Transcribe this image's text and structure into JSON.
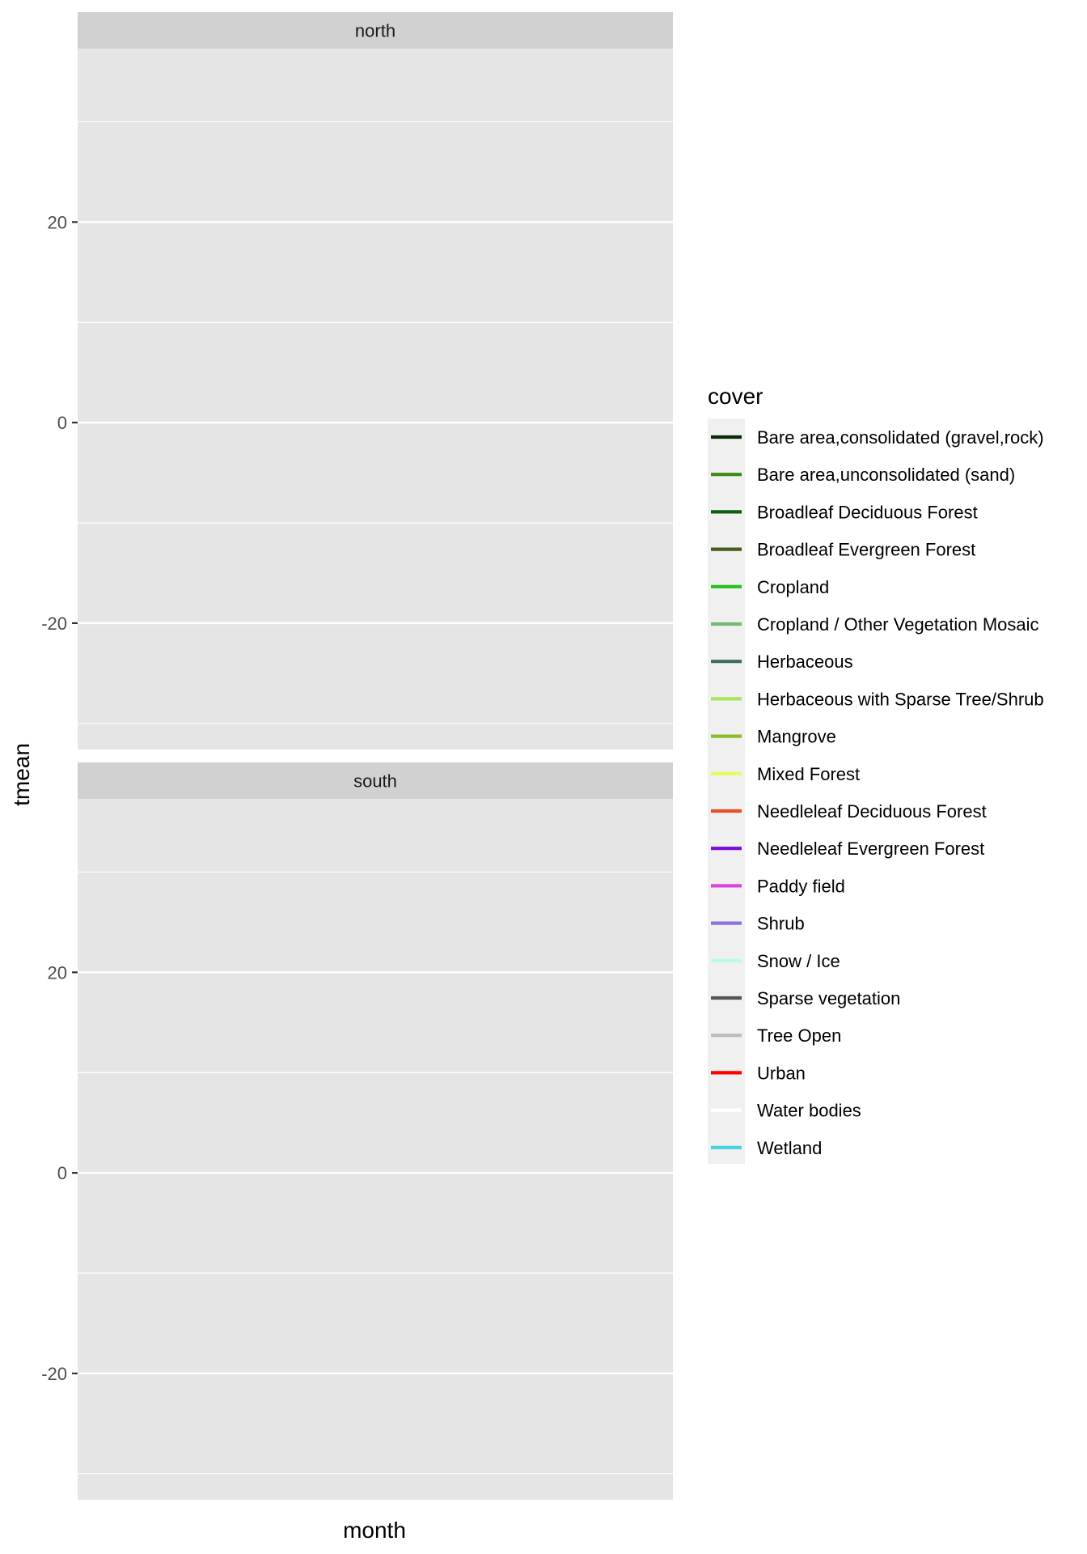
{
  "chart_data": {
    "type": "line",
    "facets": [
      {
        "label": "north",
        "series": []
      },
      {
        "label": "south",
        "series": []
      }
    ],
    "xlabel": "month",
    "ylabel": "tmean",
    "ylim": [
      -32.6,
      37.3
    ],
    "y_major_ticks": [
      -20,
      0,
      20
    ],
    "y_major_tick_labels": [
      "-20",
      "0",
      "20"
    ],
    "y_minor_ticks": [
      -30,
      -10,
      10,
      30
    ],
    "grid": true,
    "legend": {
      "title": "cover",
      "position": "right",
      "entries": [
        {
          "label": "Bare area,consolidated (gravel,rock)",
          "color": "#0a2a0a"
        },
        {
          "label": "Bare area,unconsolidated (sand)",
          "color": "#3d8a14"
        },
        {
          "label": "Broadleaf Deciduous Forest",
          "color": "#0b5e14"
        },
        {
          "label": "Broadleaf Evergreen Forest",
          "color": "#445c1e"
        },
        {
          "label": "Cropland",
          "color": "#22c41e"
        },
        {
          "label": "Cropland / Other Vegetation Mosaic",
          "color": "#74b877"
        },
        {
          "label": "Herbaceous",
          "color": "#3f6e5b"
        },
        {
          "label": "Herbaceous with Sparse Tree/Shrub",
          "color": "#a7e65a"
        },
        {
          "label": "Mangrove",
          "color": "#8bbd2b"
        },
        {
          "label": "Mixed Forest",
          "color": "#eafa5e"
        },
        {
          "label": "Needleleaf Deciduous Forest",
          "color": "#e8502a"
        },
        {
          "label": "Needleleaf Evergreen Forest",
          "color": "#7a0ad6"
        },
        {
          "label": "Paddy field",
          "color": "#dd45dd"
        },
        {
          "label": "Shrub",
          "color": "#9071df"
        },
        {
          "label": "Snow / Ice",
          "color": "#b8fce8"
        },
        {
          "label": "Sparse vegetation",
          "color": "#545454"
        },
        {
          "label": "Tree Open",
          "color": "#bcbcbc"
        },
        {
          "label": "Urban",
          "color": "#ff0000"
        },
        {
          "label": "Water bodies",
          "color": "#ffffff"
        },
        {
          "label": "Wetland",
          "color": "#44d3dc"
        }
      ]
    }
  },
  "colors": {
    "panel_background": "#e5e5e5",
    "strip_background": "#d1d1d1",
    "gridline": "#ffffff",
    "legend_key_background": "#f0f0f0"
  }
}
